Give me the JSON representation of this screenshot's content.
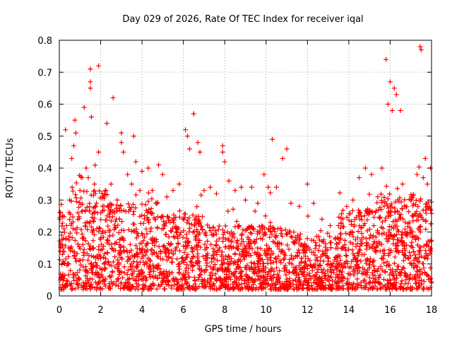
{
  "chart_data": {
    "type": "scatter",
    "title": "Day 029 of 2026, Rate Of TEC Index for receiver iqal",
    "xlabel": "GPS time / hours",
    "ylabel": "ROTI / TECUs",
    "xlim": [
      0,
      18
    ],
    "ylim": [
      0,
      0.8
    ],
    "xticks": [
      "0",
      "2",
      "4",
      "6",
      "8",
      "10",
      "12",
      "14",
      "16",
      "18"
    ],
    "yticks": [
      "0",
      "0.1",
      "0.2",
      "0.3",
      "0.4",
      "0.5",
      "0.6",
      "0.7",
      "0.8"
    ],
    "grid": true,
    "marker": "+",
    "color": "#ff0000",
    "series": [
      {
        "name": "ROTI",
        "points": [
          [
            0.05,
            0.14
          ],
          [
            0.1,
            0.06
          ],
          [
            0.2,
            0.18
          ],
          [
            0.3,
            0.52
          ],
          [
            0.35,
            0.22
          ],
          [
            0.45,
            0.1
          ],
          [
            0.5,
            0.3
          ],
          [
            0.6,
            0.43
          ],
          [
            0.7,
            0.47
          ],
          [
            0.75,
            0.55
          ],
          [
            0.8,
            0.51
          ],
          [
            0.9,
            0.26
          ],
          [
            1.0,
            0.33
          ],
          [
            1.1,
            0.37
          ],
          [
            1.2,
            0.59
          ],
          [
            1.3,
            0.4
          ],
          [
            1.4,
            0.37
          ],
          [
            1.5,
            0.71
          ],
          [
            1.5,
            0.67
          ],
          [
            1.5,
            0.65
          ],
          [
            1.55,
            0.56
          ],
          [
            1.7,
            0.35
          ],
          [
            1.8,
            0.29
          ],
          [
            1.9,
            0.72
          ],
          [
            1.9,
            0.45
          ],
          [
            2.0,
            0.26
          ],
          [
            2.2,
            0.32
          ],
          [
            2.3,
            0.54
          ],
          [
            2.5,
            0.35
          ],
          [
            2.6,
            0.62
          ],
          [
            2.8,
            0.3
          ],
          [
            3.0,
            0.51
          ],
          [
            3.0,
            0.48
          ],
          [
            3.1,
            0.45
          ],
          [
            3.3,
            0.38
          ],
          [
            3.5,
            0.35
          ],
          [
            3.6,
            0.5
          ],
          [
            3.7,
            0.42
          ],
          [
            3.9,
            0.33
          ],
          [
            4.0,
            0.39
          ],
          [
            4.3,
            0.4
          ],
          [
            4.5,
            0.33
          ],
          [
            4.8,
            0.41
          ],
          [
            5.0,
            0.38
          ],
          [
            5.2,
            0.31
          ],
          [
            5.5,
            0.33
          ],
          [
            5.8,
            0.35
          ],
          [
            6.1,
            0.52
          ],
          [
            6.2,
            0.5
          ],
          [
            6.3,
            0.46
          ],
          [
            6.5,
            0.57
          ],
          [
            6.5,
            0.57
          ],
          [
            6.7,
            0.48
          ],
          [
            6.8,
            0.45
          ],
          [
            7.0,
            0.33
          ],
          [
            7.3,
            0.34
          ],
          [
            7.6,
            0.32
          ],
          [
            7.9,
            0.47
          ],
          [
            7.9,
            0.45
          ],
          [
            8.0,
            0.42
          ],
          [
            8.2,
            0.36
          ],
          [
            8.5,
            0.33
          ],
          [
            8.8,
            0.34
          ],
          [
            9.0,
            0.3
          ],
          [
            9.3,
            0.34
          ],
          [
            9.6,
            0.29
          ],
          [
            9.9,
            0.38
          ],
          [
            10.1,
            0.34
          ],
          [
            10.3,
            0.49
          ],
          [
            10.5,
            0.34
          ],
          [
            10.8,
            0.43
          ],
          [
            11.0,
            0.46
          ],
          [
            11.2,
            0.29
          ],
          [
            11.6,
            0.28
          ],
          [
            12.0,
            0.35
          ],
          [
            12.3,
            0.29
          ],
          [
            12.7,
            0.24
          ],
          [
            13.1,
            0.22
          ],
          [
            13.5,
            0.22
          ],
          [
            13.9,
            0.28
          ],
          [
            14.2,
            0.3
          ],
          [
            14.5,
            0.37
          ],
          [
            14.8,
            0.4
          ],
          [
            15.1,
            0.38
          ],
          [
            15.4,
            0.31
          ],
          [
            15.6,
            0.4
          ],
          [
            15.8,
            0.74
          ],
          [
            15.9,
            0.6
          ],
          [
            16.0,
            0.67
          ],
          [
            16.1,
            0.58
          ],
          [
            16.2,
            0.65
          ],
          [
            16.3,
            0.63
          ],
          [
            16.5,
            0.58
          ],
          [
            16.6,
            0.35
          ],
          [
            16.8,
            0.28
          ],
          [
            17.0,
            0.3
          ],
          [
            17.3,
            0.38
          ],
          [
            17.45,
            0.78
          ],
          [
            17.5,
            0.77
          ],
          [
            17.6,
            0.37
          ],
          [
            17.7,
            0.43
          ],
          [
            17.8,
            0.35
          ],
          [
            17.9,
            0.28
          ],
          [
            17.95,
            0.4
          ]
        ]
      }
    ]
  }
}
